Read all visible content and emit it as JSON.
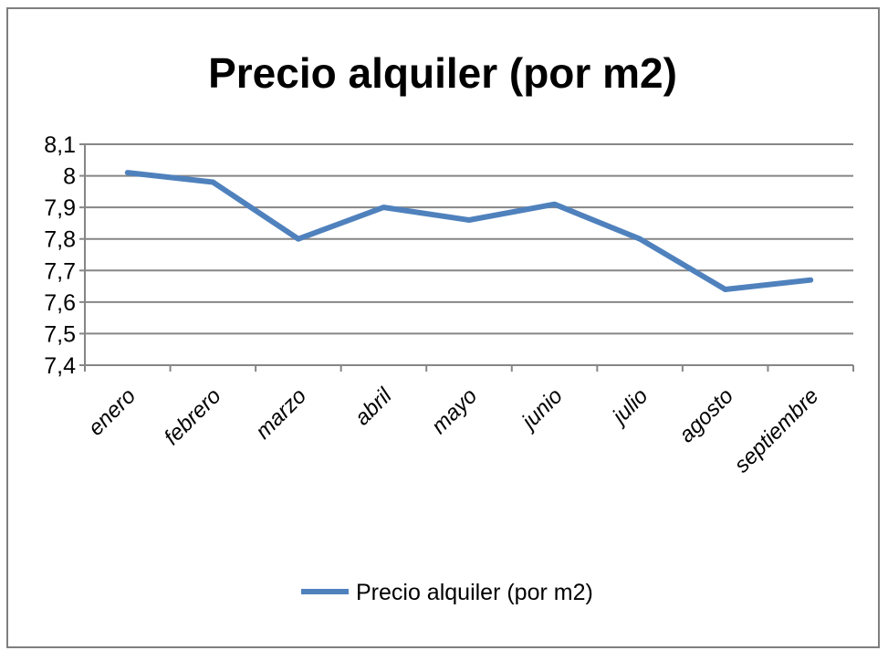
{
  "chart_data": {
    "type": "line",
    "title": "Precio alquiler (por m2)",
    "xlabel": "",
    "ylabel": "",
    "categories": [
      "enero",
      "febrero",
      "marzo",
      "abril",
      "mayo",
      "junio",
      "julio",
      "agosto",
      "septiembre"
    ],
    "series": [
      {
        "name": "Precio alquiler (por m2)",
        "values": [
          8.01,
          7.98,
          7.8,
          7.9,
          7.86,
          7.91,
          7.8,
          7.64,
          7.67
        ],
        "color": "#4f81bd"
      }
    ],
    "ylim": [
      7.4,
      8.1
    ],
    "yticks": [
      "7,4",
      "7,5",
      "7,6",
      "7,7",
      "7,8",
      "7,9",
      "8",
      "8,1"
    ],
    "grid": true,
    "legend_position": "bottom"
  }
}
